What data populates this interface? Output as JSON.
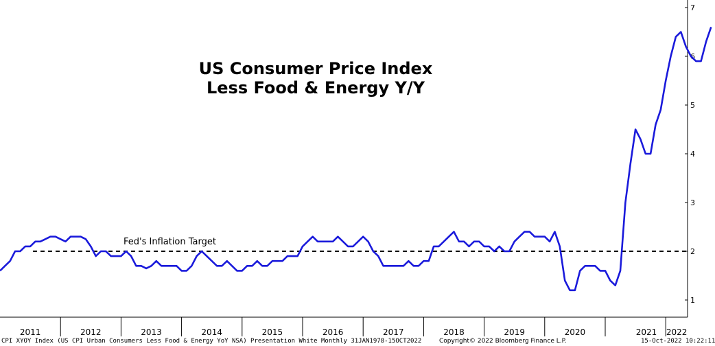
{
  "chart_data": {
    "type": "line",
    "title": "US Consumer Price Index",
    "subtitle": "Less Food & Energy Y/Y",
    "annotation": "Fed's Inflation Target",
    "target_value": 2.0,
    "ylim": [
      0.5,
      7.1
    ],
    "y_ticks": [
      "1",
      "2",
      "3",
      "4",
      "5",
      "6",
      "7"
    ],
    "x_tick_labels": [
      "2011",
      "2012",
      "2013",
      "2014",
      "2015",
      "2016",
      "2017",
      "2018",
      "2019",
      "2020",
      "2021",
      "2022"
    ],
    "x_start_year": 2011,
    "x_step_months": 1,
    "series_color": "#1a1adb",
    "values": [
      1.6,
      1.7,
      1.8,
      2.0,
      2.0,
      2.1,
      2.1,
      2.2,
      2.2,
      2.25,
      2.3,
      2.3,
      2.25,
      2.2,
      2.3,
      2.3,
      2.3,
      2.25,
      2.1,
      1.9,
      2.0,
      2.0,
      1.9,
      1.9,
      1.9,
      2.0,
      1.9,
      1.7,
      1.7,
      1.65,
      1.7,
      1.8,
      1.7,
      1.7,
      1.7,
      1.7,
      1.6,
      1.6,
      1.7,
      1.9,
      2.0,
      1.9,
      1.8,
      1.7,
      1.7,
      1.8,
      1.7,
      1.6,
      1.6,
      1.7,
      1.7,
      1.8,
      1.7,
      1.7,
      1.8,
      1.8,
      1.8,
      1.9,
      1.9,
      1.9,
      2.1,
      2.2,
      2.3,
      2.2,
      2.2,
      2.2,
      2.2,
      2.3,
      2.2,
      2.1,
      2.1,
      2.2,
      2.3,
      2.2,
      2.0,
      1.9,
      1.7,
      1.7,
      1.7,
      1.7,
      1.7,
      1.8,
      1.7,
      1.7,
      1.8,
      1.8,
      2.1,
      2.1,
      2.2,
      2.3,
      2.4,
      2.2,
      2.2,
      2.1,
      2.2,
      2.2,
      2.1,
      2.1,
      2.0,
      2.1,
      2.0,
      2.0,
      2.2,
      2.3,
      2.4,
      2.4,
      2.3,
      2.3,
      2.3,
      2.2,
      2.4,
      2.1,
      1.4,
      1.2,
      1.2,
      1.6,
      1.7,
      1.7,
      1.7,
      1.6,
      1.6,
      1.4,
      1.3,
      1.6,
      3.0,
      3.8,
      4.5,
      4.3,
      4.0,
      4.0,
      4.6,
      4.9,
      5.5,
      6.0,
      6.4,
      6.5,
      6.2,
      6.0,
      5.9,
      5.9,
      6.3,
      6.6
    ]
  },
  "footer": {
    "left": "CPI XYOY Index (US CPI Urban Consumers Less Food & Energy YoY NSA) Presentation White  Monthly 31JAN1978-15OCT2022",
    "center": "Copyright© 2022 Bloomberg Finance L.P.",
    "right": "15-Oct-2022 10:22:11"
  }
}
